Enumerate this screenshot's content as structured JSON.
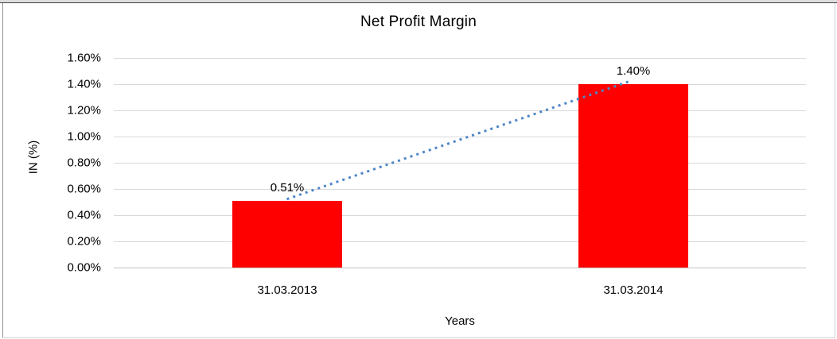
{
  "chart_data": {
    "type": "bar",
    "title": "Net Profit Margin",
    "categories": [
      "31.03.2013",
      "31.03.2014"
    ],
    "values": [
      0.51,
      1.4
    ],
    "data_labels": [
      "0.51%",
      "1.40%"
    ],
    "xlabel": "Years",
    "ylabel": "IN (%)",
    "ylim": [
      0,
      1.6
    ],
    "ytick_step": 0.2,
    "ytick_labels": [
      "0.00%",
      "0.20%",
      "0.40%",
      "0.60%",
      "0.80%",
      "1.00%",
      "1.20%",
      "1.40%",
      "1.60%"
    ],
    "grid": true,
    "legend": "none",
    "bar_color": "#ff0000",
    "gridline_color": "#d9d9d9",
    "axis_line_color": "#c3c3c3",
    "text_color": "#000000",
    "trendline": {
      "type": "linear",
      "style": "dotted",
      "color": "#4e86c8"
    }
  }
}
